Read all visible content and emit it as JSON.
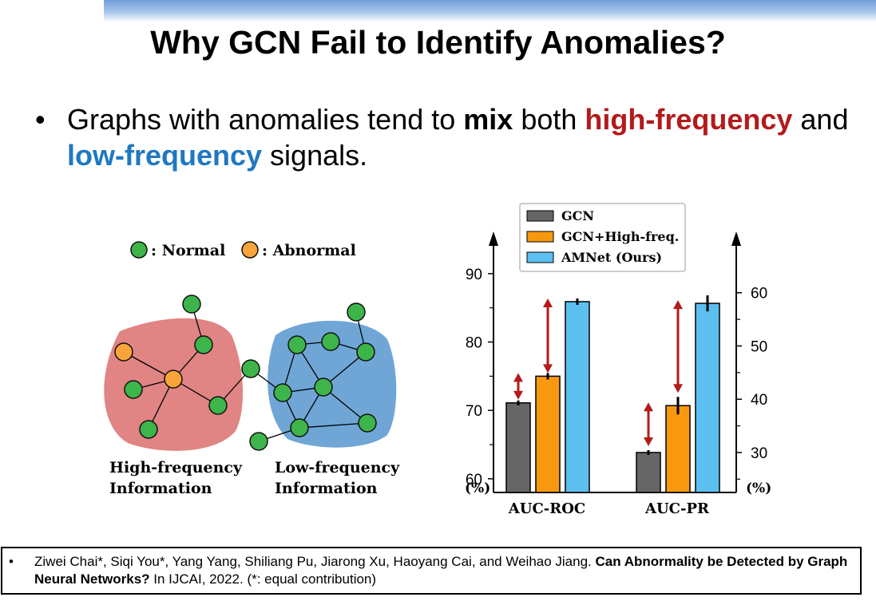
{
  "slide": {
    "title": "Why GCN Fail to Identify Anomalies?",
    "bullet": {
      "symbol": "•",
      "pre": "Graphs with anomalies tend to ",
      "mix": "mix",
      "mid1": " both ",
      "high": "high-frequency",
      "mid2": " and ",
      "low": "low-frequency",
      "post": " signals."
    }
  },
  "graph_figure": {
    "legend_normal": ": Normal",
    "legend_abnormal": ": Abnormal",
    "label_high_1": "High-frequency",
    "label_high_2": "Information",
    "label_low_1": "Low-frequency",
    "label_low_2": "Information",
    "colors": {
      "normal": "#3db54a",
      "abnormal": "#f8a43a",
      "high_region": "#e08484",
      "low_region": "#6fa6d6"
    }
  },
  "chart_data": {
    "type": "bar",
    "categories": [
      "AUC-ROC",
      "AUC-PR"
    ],
    "series": [
      {
        "name": "GCN",
        "color": "#666666",
        "values": [
          71.1,
          30.0
        ]
      },
      {
        "name": "GCN+High-freq.",
        "color": "#f8980f",
        "values": [
          75.0,
          38.8
        ]
      },
      {
        "name": "AMNet (Ours)",
        "color": "#5bc0f0",
        "values": [
          85.9,
          58.0
        ]
      }
    ],
    "axis_assignment": [
      "left",
      "right"
    ],
    "left_axis": {
      "ylim": [
        58,
        95
      ],
      "ticks": [
        "60",
        "70",
        "80",
        "90"
      ],
      "unit": "(%)"
    },
    "right_axis": {
      "ylim": [
        22.5,
        70
      ],
      "ticks": [
        "30",
        "40",
        "50",
        "60"
      ],
      "unit": "(%)"
    },
    "legend_position": "top-center",
    "annotations": "red double-headed arrows indicating gaps between bars"
  },
  "citation": {
    "symbol": "•",
    "authors": "Ziwei Chai*, Siqi You*, Yang Yang, Shiliang Pu, Jiarong Xu, Haoyang Cai, and Weihao Jiang. ",
    "paper_title": "Can Abnormality be Detected by Graph Neural Networks?",
    "venue": " In IJCAI, 2022. (*: equal contribution)"
  }
}
